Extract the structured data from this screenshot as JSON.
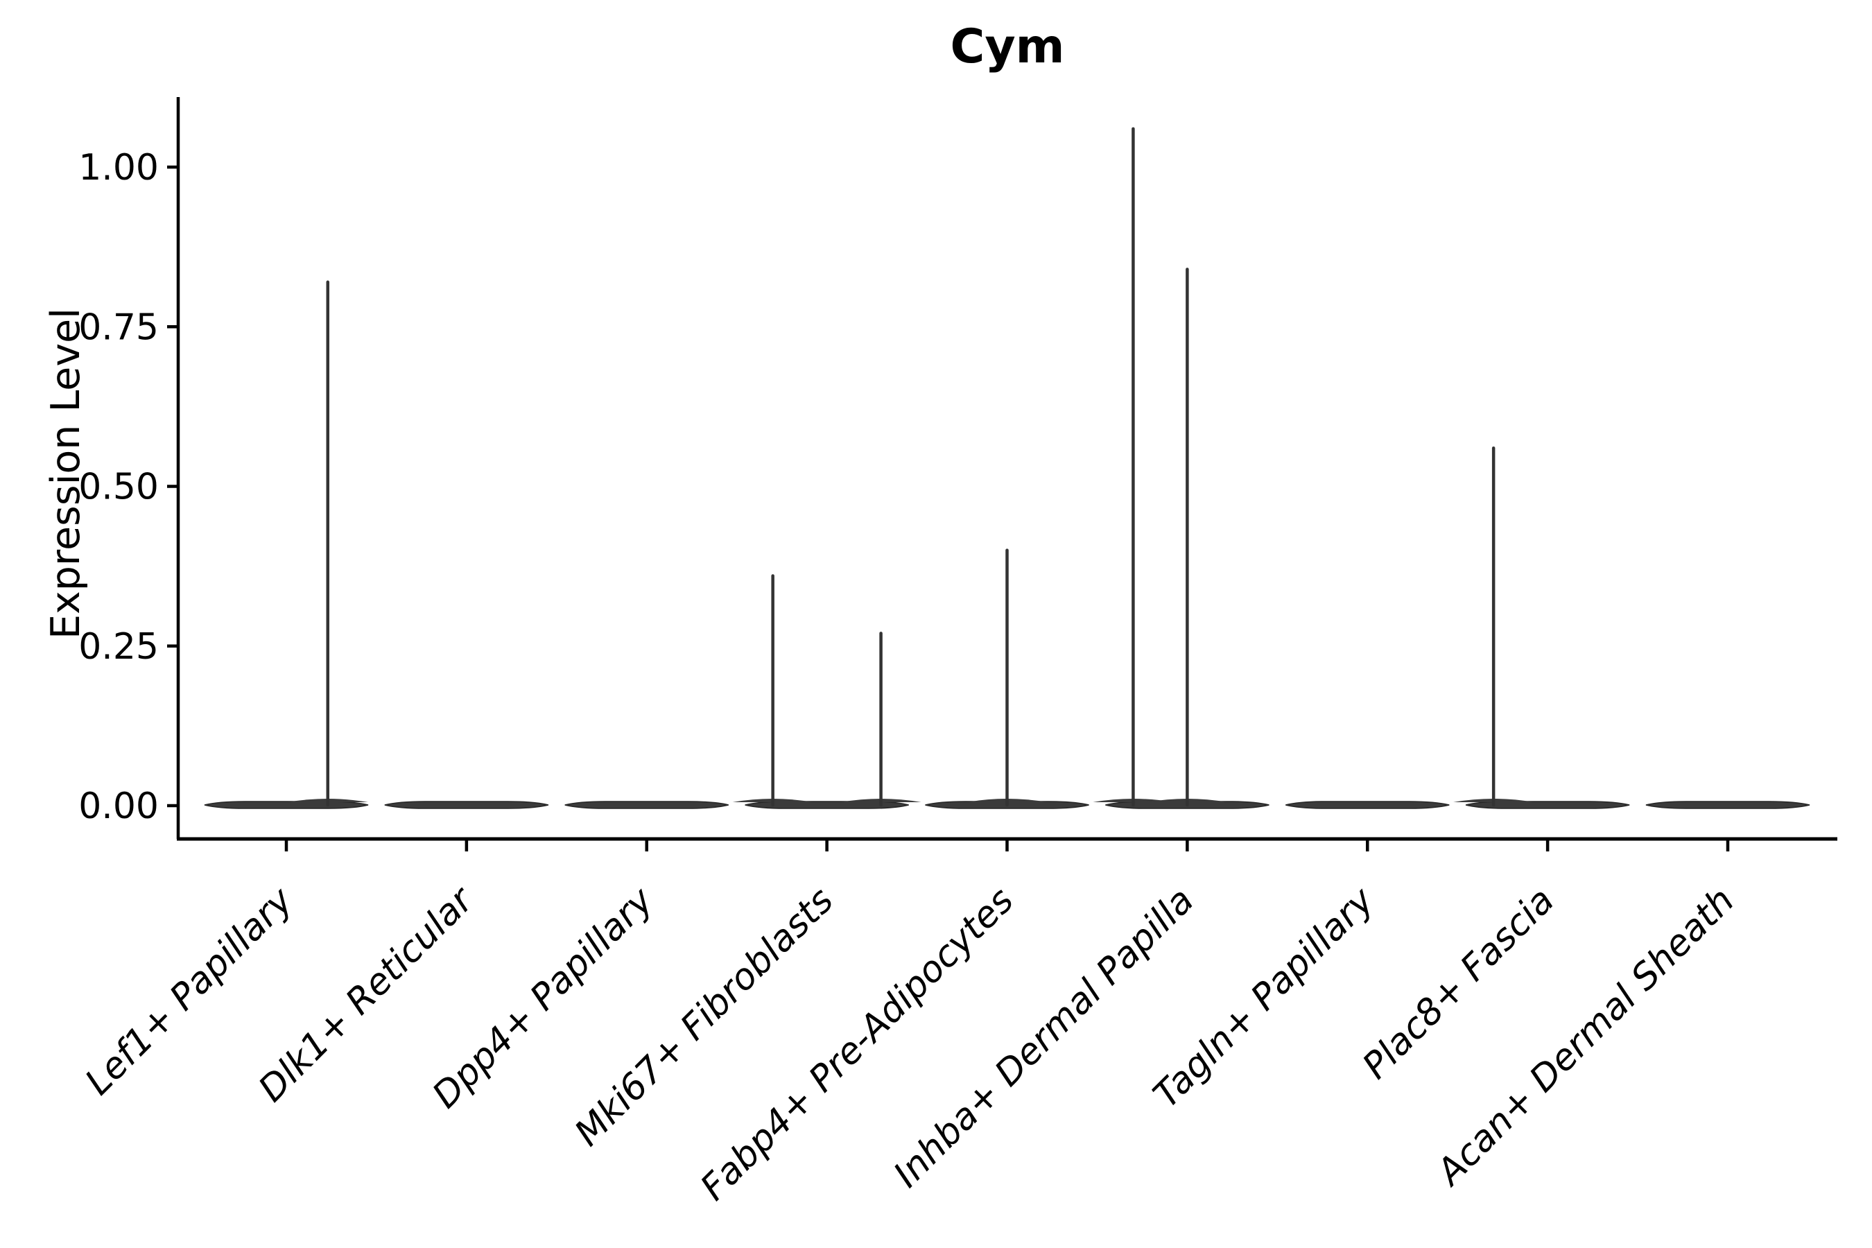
{
  "title": "Cym",
  "axes": {
    "ylabel": "Expression Level",
    "xlabel": "",
    "ytick_labels": [
      "0.00",
      "0.25",
      "0.50",
      "0.75",
      "1.00"
    ],
    "ytick_values": [
      0,
      0.25,
      0.5,
      0.75,
      1.0
    ]
  },
  "chart_data": {
    "type": "violin",
    "title": "Cym",
    "ylabel": "Expression Level",
    "xlabel": "",
    "ylim": [
      -0.052,
      1.11
    ],
    "yticks": [
      0,
      0.25,
      0.5,
      0.75,
      1.0
    ],
    "ytick_labels": [
      "0.00",
      "0.25",
      "0.50",
      "0.75",
      "1.00"
    ],
    "grid": false,
    "legend": "none",
    "categories": [
      "Lef1+ Papillary",
      "Dlk1+ Reticular",
      "Dpp4+ Papillary",
      "Mki67+ Fibroblasts",
      "Fabp4+ Pre-Adipocytes",
      "Inhba+ Dermal Papilla",
      "Tagln+ Papillary",
      "Plac8+ Fascia",
      "Acan+ Dermal Sheath"
    ],
    "violins": [
      {
        "category": "Lef1+ Papillary",
        "base_value": 0,
        "spikes": [
          {
            "value": 0.82,
            "x_offset_frac": 0.23
          }
        ]
      },
      {
        "category": "Dlk1+ Reticular",
        "base_value": 0,
        "spikes": []
      },
      {
        "category": "Dpp4+ Papillary",
        "base_value": 0,
        "spikes": []
      },
      {
        "category": "Mki67+ Fibroblasts",
        "base_value": 0,
        "spikes": [
          {
            "value": 0.36,
            "x_offset_frac": -0.3
          },
          {
            "value": 0.27,
            "x_offset_frac": 0.3
          }
        ]
      },
      {
        "category": "Fabp4+ Pre-Adipocytes",
        "base_value": 0,
        "spikes": [
          {
            "value": 0.4,
            "x_offset_frac": 0.0
          }
        ]
      },
      {
        "category": "Inhba+ Dermal Papilla",
        "base_value": 0,
        "spikes": [
          {
            "value": 1.06,
            "x_offset_frac": -0.3
          },
          {
            "value": 0.84,
            "x_offset_frac": 0.0
          }
        ]
      },
      {
        "category": "Tagln+ Papillary",
        "base_value": 0,
        "spikes": []
      },
      {
        "category": "Plac8+ Fascia",
        "base_value": 0,
        "spikes": [
          {
            "value": 0.56,
            "x_offset_frac": -0.3
          }
        ]
      },
      {
        "category": "Acan+ Dermal Sheath",
        "base_value": 0,
        "spikes": []
      }
    ]
  },
  "colors": {
    "violin_fill": "#3b3b3b",
    "violin_edge": "#262626",
    "spike": "#333333",
    "spine": "#000000",
    "background": "#ffffff"
  }
}
